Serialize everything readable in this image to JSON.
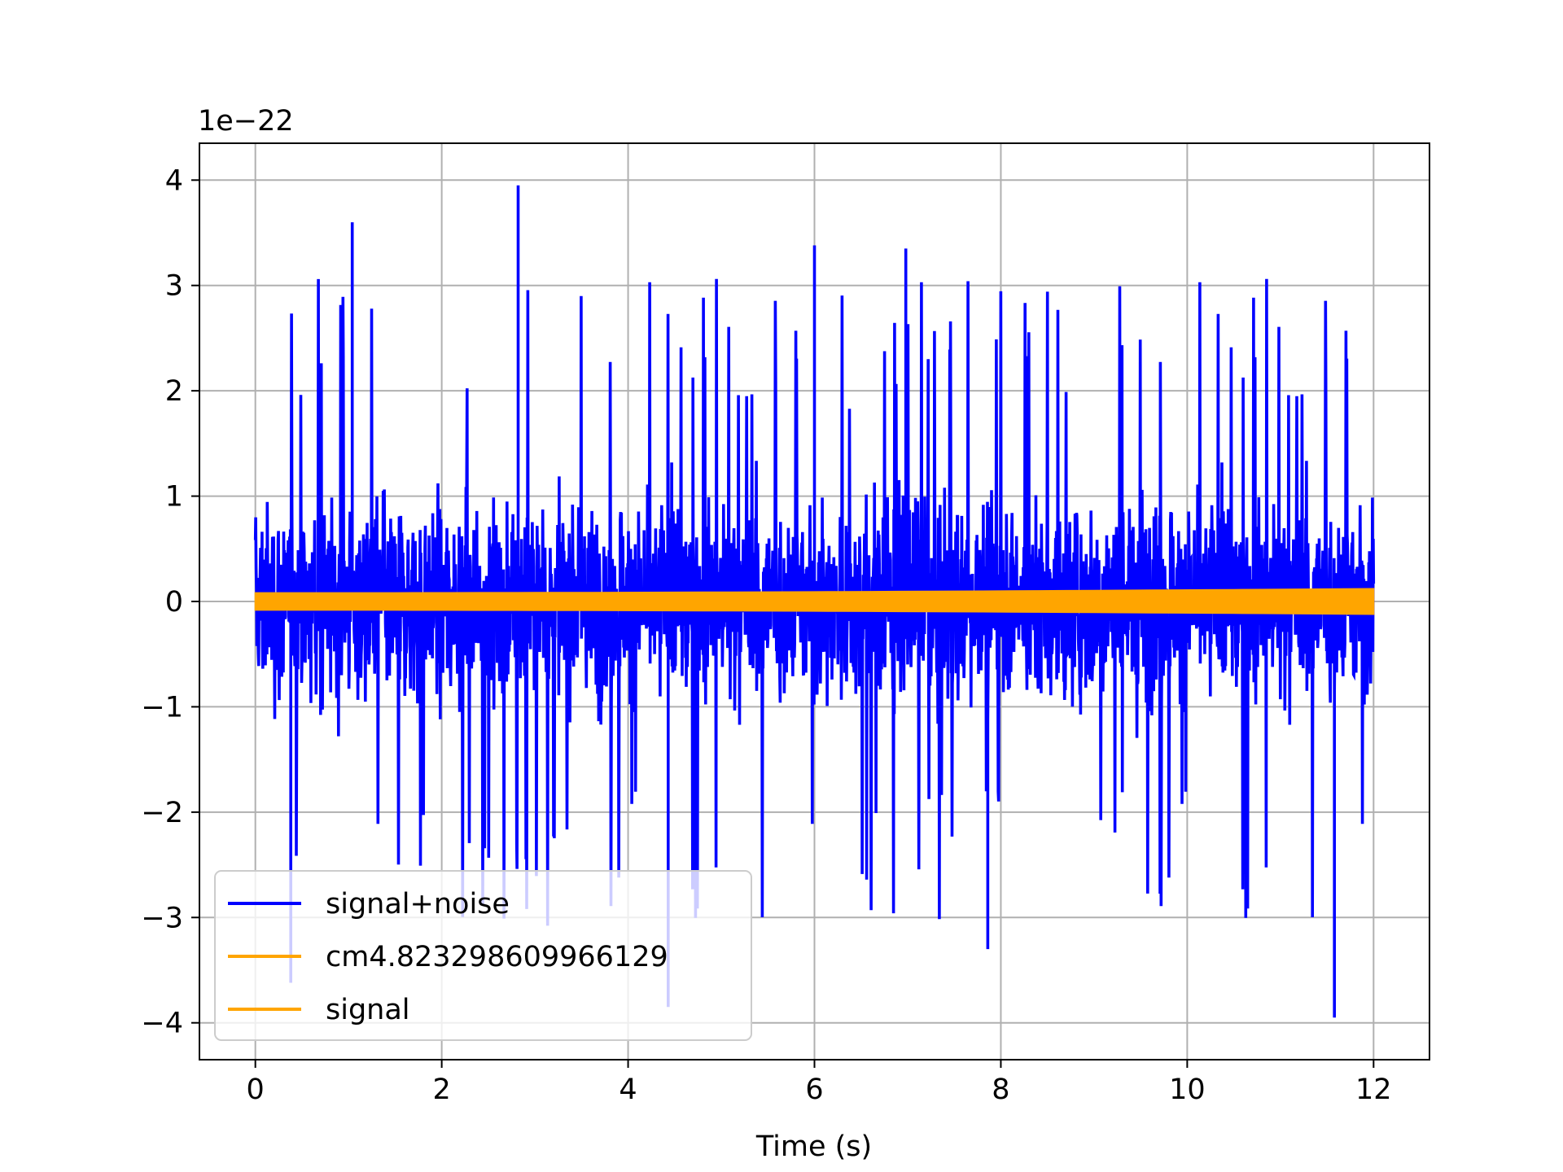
{
  "chart_data": {
    "type": "line",
    "title": "",
    "xlabel": "Time (s)",
    "ylabel": "",
    "y_offset_label": "1e−22",
    "xlim": [
      -0.6,
      12.6
    ],
    "ylim": [
      -4.35,
      4.35
    ],
    "x_ticks": [
      0,
      2,
      4,
      6,
      8,
      10,
      12
    ],
    "x_tick_labels": [
      "0",
      "2",
      "4",
      "6",
      "8",
      "10",
      "12"
    ],
    "y_ticks": [
      -4,
      -3,
      -2,
      -1,
      0,
      1,
      2,
      3,
      4
    ],
    "y_tick_labels": [
      "−4",
      "−3",
      "−2",
      "−1",
      "0",
      "1",
      "2",
      "3",
      "4"
    ],
    "grid": true,
    "legend_position": "lower-left",
    "series": [
      {
        "name": "signal+noise",
        "color": "#0000ff",
        "kind": "random-noise",
        "x_range": [
          0,
          12
        ],
        "core_amplitude": 1.5,
        "peak_max": 3.95,
        "peak_min": -3.95,
        "notable_peaks": [
          {
            "x": 2.82,
            "y": 3.95
          },
          {
            "x": 1.04,
            "y": 3.6
          },
          {
            "x": 6.0,
            "y": 3.38
          },
          {
            "x": 6.98,
            "y": 3.35
          },
          {
            "x": 11.58,
            "y": -3.95
          },
          {
            "x": 4.43,
            "y": -3.85
          },
          {
            "x": 0.38,
            "y": -3.62
          },
          {
            "x": 7.86,
            "y": -3.3
          }
        ]
      },
      {
        "name": "cm4.823298609966129",
        "color": "#ffa500",
        "kind": "chirp-envelope",
        "x_range": [
          0,
          12
        ],
        "amplitude_start": 0.08,
        "amplitude_end": 0.12
      },
      {
        "name": "signal",
        "color": "#ffa500",
        "kind": "chirp-envelope",
        "x_range": [
          0,
          12
        ],
        "amplitude_start": 0.08,
        "amplitude_end": 0.12
      }
    ]
  }
}
